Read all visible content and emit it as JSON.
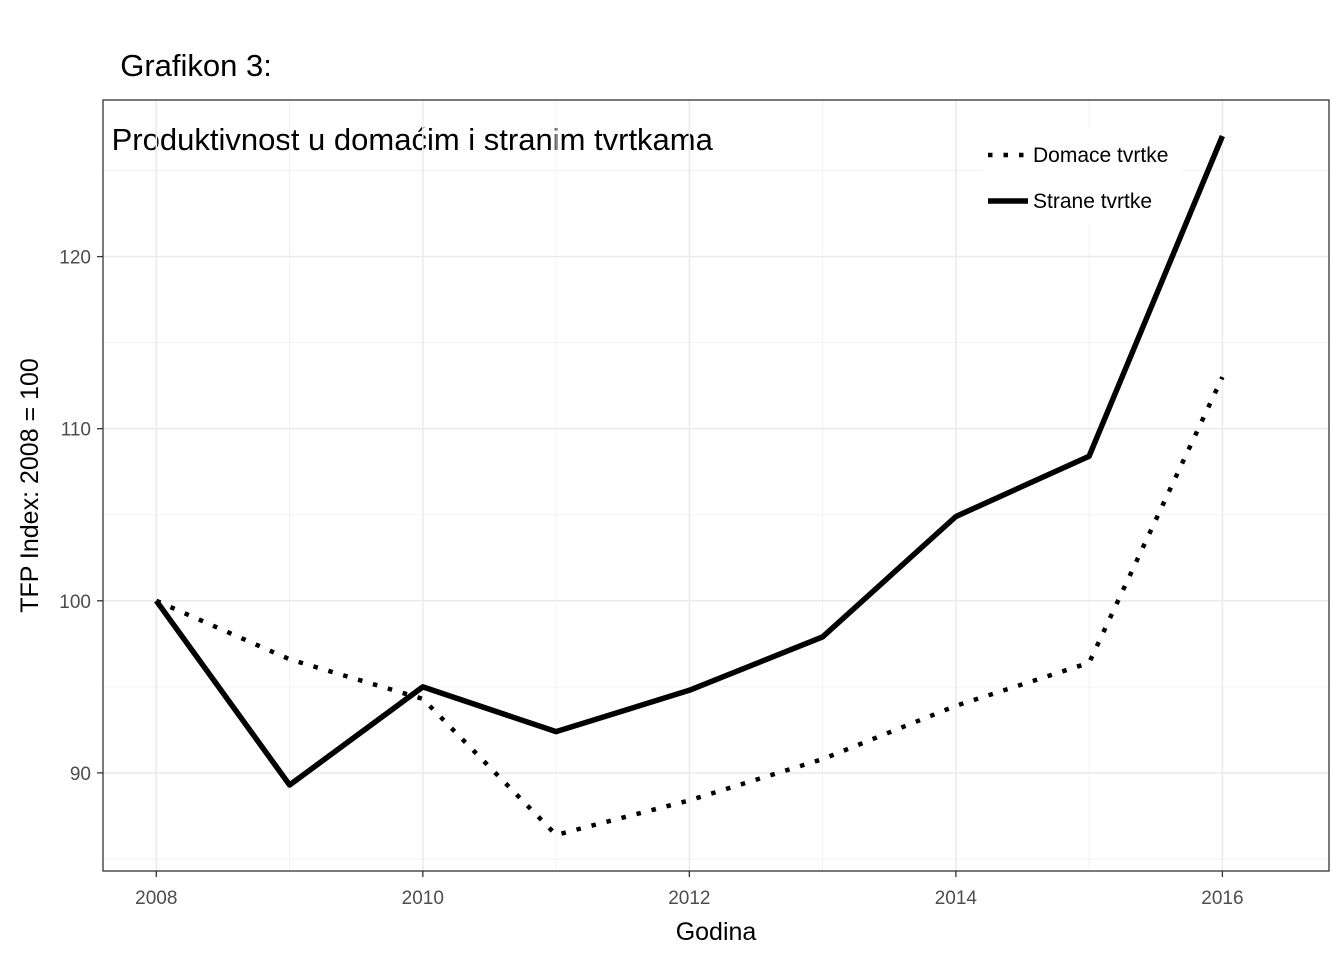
{
  "chart_data": {
    "type": "line",
    "title": "Grafikon 3:",
    "subtitle": " Produktivnost u domaćim i stranim tvrtkama",
    "xlabel": "Godina",
    "ylabel": "TFP Index: 2008 = 100",
    "x": [
      2008,
      2009,
      2010,
      2011,
      2012,
      2013,
      2014,
      2015,
      2016
    ],
    "xlim": [
      2007.6,
      2016.8
    ],
    "ylim": [
      84.3,
      129.1
    ],
    "xticks": [
      2008,
      2010,
      2012,
      2014,
      2016
    ],
    "yticks": [
      90,
      100,
      110,
      120
    ],
    "grid": true,
    "legend_position": "top-right",
    "series": [
      {
        "name": "Domace tvrtke",
        "style": "dotted",
        "color": "#000000",
        "values": [
          100,
          96.6,
          94.3,
          86.4,
          88.4,
          90.8,
          93.9,
          96.4,
          113.0
        ]
      },
      {
        "name": "Strane tvrtke",
        "style": "solid",
        "color": "#000000",
        "values": [
          100,
          89.3,
          95.0,
          92.4,
          94.8,
          97.9,
          104.9,
          108.4,
          127.0
        ]
      }
    ]
  }
}
